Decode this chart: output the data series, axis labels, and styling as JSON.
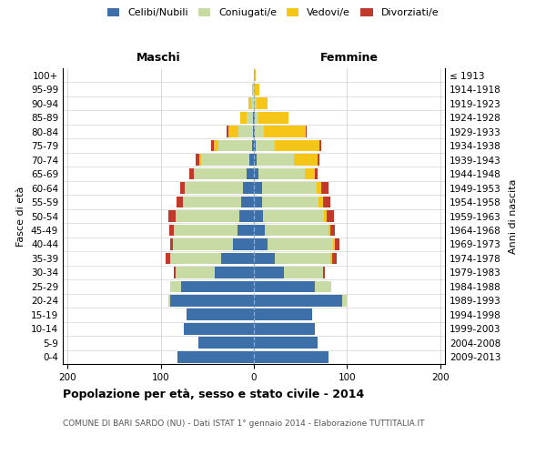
{
  "age_groups": [
    "0-4",
    "5-9",
    "10-14",
    "15-19",
    "20-24",
    "25-29",
    "30-34",
    "35-39",
    "40-44",
    "45-49",
    "50-54",
    "55-59",
    "60-64",
    "65-69",
    "70-74",
    "75-79",
    "80-84",
    "85-89",
    "90-94",
    "95-99",
    "100+"
  ],
  "birth_years": [
    "2009-2013",
    "2004-2008",
    "1999-2003",
    "1994-1998",
    "1989-1993",
    "1984-1988",
    "1979-1983",
    "1974-1978",
    "1969-1973",
    "1964-1968",
    "1959-1963",
    "1954-1958",
    "1949-1953",
    "1944-1948",
    "1939-1943",
    "1934-1938",
    "1929-1933",
    "1924-1928",
    "1919-1923",
    "1914-1918",
    "≤ 1913"
  ],
  "males": {
    "celibi": [
      82,
      60,
      75,
      72,
      90,
      78,
      42,
      35,
      22,
      18,
      16,
      14,
      12,
      8,
      5,
      2,
      1,
      1,
      0,
      0,
      0
    ],
    "coniugati": [
      0,
      0,
      0,
      0,
      2,
      12,
      42,
      55,
      65,
      68,
      68,
      62,
      62,
      56,
      52,
      36,
      16,
      7,
      3,
      1,
      0
    ],
    "vedovi": [
      0,
      0,
      0,
      0,
      0,
      0,
      0,
      0,
      0,
      0,
      0,
      0,
      0,
      0,
      2,
      5,
      10,
      7,
      3,
      1,
      0
    ],
    "divorziati": [
      0,
      0,
      0,
      0,
      0,
      0,
      2,
      5,
      3,
      5,
      8,
      7,
      5,
      5,
      3,
      3,
      2,
      0,
      0,
      0,
      0
    ]
  },
  "females": {
    "nubili": [
      80,
      68,
      65,
      62,
      95,
      65,
      32,
      22,
      15,
      12,
      10,
      9,
      9,
      5,
      3,
      2,
      1,
      1,
      0,
      0,
      0
    ],
    "coniugate": [
      0,
      0,
      0,
      0,
      5,
      18,
      42,
      60,
      70,
      68,
      65,
      60,
      58,
      50,
      40,
      20,
      10,
      4,
      3,
      1,
      0
    ],
    "vedove": [
      0,
      0,
      0,
      0,
      0,
      0,
      0,
      2,
      2,
      2,
      3,
      5,
      5,
      10,
      25,
      48,
      45,
      32,
      12,
      5,
      2
    ],
    "divorziate": [
      0,
      0,
      0,
      0,
      0,
      0,
      2,
      5,
      5,
      5,
      8,
      8,
      8,
      3,
      2,
      2,
      1,
      0,
      0,
      0,
      0
    ]
  },
  "colors": {
    "celibi": "#3d6fa8",
    "coniugati": "#c8dba4",
    "vedovi": "#f5c518",
    "divorziati": "#c0392b"
  },
  "xlim": 205,
  "xtick_step": 100,
  "title": "Popolazione per età, sesso e stato civile - 2014",
  "subtitle": "COMUNE DI BARI SARDO (NU) - Dati ISTAT 1° gennaio 2014 - Elaborazione TUTTITALIA.IT",
  "label_maschi": "Maschi",
  "label_femmine": "Femmine",
  "ylabel": "Fasce di età",
  "ylabel_right": "Anni di nascita",
  "background_color": "#ffffff",
  "bar_height": 0.82,
  "legend_labels": [
    "Celibi/Nubili",
    "Coniugati/e",
    "Vedovi/e",
    "Divorziati/e"
  ],
  "grid_color": "#cccccc",
  "center_line_color": "#a0a8c0",
  "title_fontsize": 9,
  "subtitle_fontsize": 6.5,
  "axis_label_fontsize": 8,
  "tick_fontsize": 7.5,
  "legend_fontsize": 8,
  "header_fontsize": 9
}
